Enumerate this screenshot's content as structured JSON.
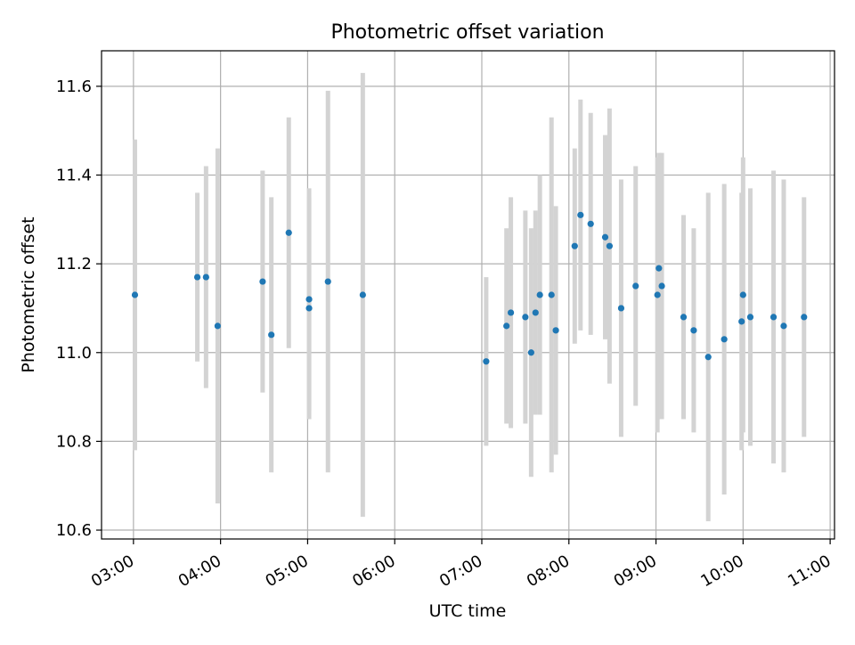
{
  "chart_data": {
    "type": "scatter",
    "title": "Photometric offset variation",
    "xlabel": "UTC time",
    "ylabel": "Photometric offset",
    "x_tick_labels": [
      "03:00",
      "04:00",
      "05:00",
      "06:00",
      "07:00",
      "08:00",
      "09:00",
      "10:00",
      "11:00"
    ],
    "y_tick_labels": [
      "10.6",
      "10.8",
      "11.0",
      "11.2",
      "11.4",
      "11.6"
    ],
    "y_ticks": [
      10.6,
      10.8,
      11.0,
      11.2,
      11.4,
      11.6
    ],
    "xlim": [
      "02:38",
      "11:03"
    ],
    "ylim": [
      10.58,
      11.68
    ],
    "grid": true,
    "legend": "none",
    "colors": {
      "point": "#1f77b4",
      "errorbar": "#d3d3d3",
      "grid": "#b0b0b0"
    },
    "points": [
      {
        "time": "03:01",
        "y": 11.13,
        "err": 0.35
      },
      {
        "time": "03:44",
        "y": 11.17,
        "err": 0.19
      },
      {
        "time": "03:50",
        "y": 11.17,
        "err": 0.25
      },
      {
        "time": "03:58",
        "y": 11.06,
        "err": 0.4
      },
      {
        "time": "04:29",
        "y": 11.16,
        "err": 0.25
      },
      {
        "time": "04:35",
        "y": 11.04,
        "err": 0.31
      },
      {
        "time": "04:47",
        "y": 11.27,
        "err": 0.26
      },
      {
        "time": "05:01",
        "y": 11.12,
        "err": 0.25
      },
      {
        "time": "05:01",
        "y": 11.1,
        "err": 0.25
      },
      {
        "time": "05:14",
        "y": 11.16,
        "err": 0.43
      },
      {
        "time": "05:38",
        "y": 11.13,
        "err": 0.5
      },
      {
        "time": "07:03",
        "y": 10.98,
        "err": 0.19
      },
      {
        "time": "07:17",
        "y": 11.06,
        "err": 0.22
      },
      {
        "time": "07:20",
        "y": 11.09,
        "err": 0.26
      },
      {
        "time": "07:30",
        "y": 11.08,
        "err": 0.24
      },
      {
        "time": "07:34",
        "y": 11.0,
        "err": 0.28
      },
      {
        "time": "07:37",
        "y": 11.09,
        "err": 0.23
      },
      {
        "time": "07:40",
        "y": 11.13,
        "err": 0.27
      },
      {
        "time": "07:48",
        "y": 11.13,
        "err": 0.4
      },
      {
        "time": "07:51",
        "y": 11.05,
        "err": 0.28
      },
      {
        "time": "08:04",
        "y": 11.24,
        "err": 0.22
      },
      {
        "time": "08:08",
        "y": 11.31,
        "err": 0.26
      },
      {
        "time": "08:15",
        "y": 11.29,
        "err": 0.25
      },
      {
        "time": "08:25",
        "y": 11.26,
        "err": 0.23
      },
      {
        "time": "08:28",
        "y": 11.24,
        "err": 0.31
      },
      {
        "time": "08:36",
        "y": 11.1,
        "err": 0.29
      },
      {
        "time": "08:46",
        "y": 11.15,
        "err": 0.27
      },
      {
        "time": "09:01",
        "y": 11.13,
        "err": 0.31
      },
      {
        "time": "09:02",
        "y": 11.19,
        "err": 0.26
      },
      {
        "time": "09:04",
        "y": 11.15,
        "err": 0.3
      },
      {
        "time": "09:19",
        "y": 11.08,
        "err": 0.23
      },
      {
        "time": "09:26",
        "y": 11.05,
        "err": 0.23
      },
      {
        "time": "09:36",
        "y": 10.99,
        "err": 0.37
      },
      {
        "time": "09:47",
        "y": 11.03,
        "err": 0.35
      },
      {
        "time": "09:59",
        "y": 11.07,
        "err": 0.29
      },
      {
        "time": "10:00",
        "y": 11.13,
        "err": 0.31
      },
      {
        "time": "10:05",
        "y": 11.08,
        "err": 0.29
      },
      {
        "time": "10:21",
        "y": 11.08,
        "err": 0.33
      },
      {
        "time": "10:28",
        "y": 11.06,
        "err": 0.33
      },
      {
        "time": "10:42",
        "y": 11.08,
        "err": 0.27
      }
    ]
  }
}
